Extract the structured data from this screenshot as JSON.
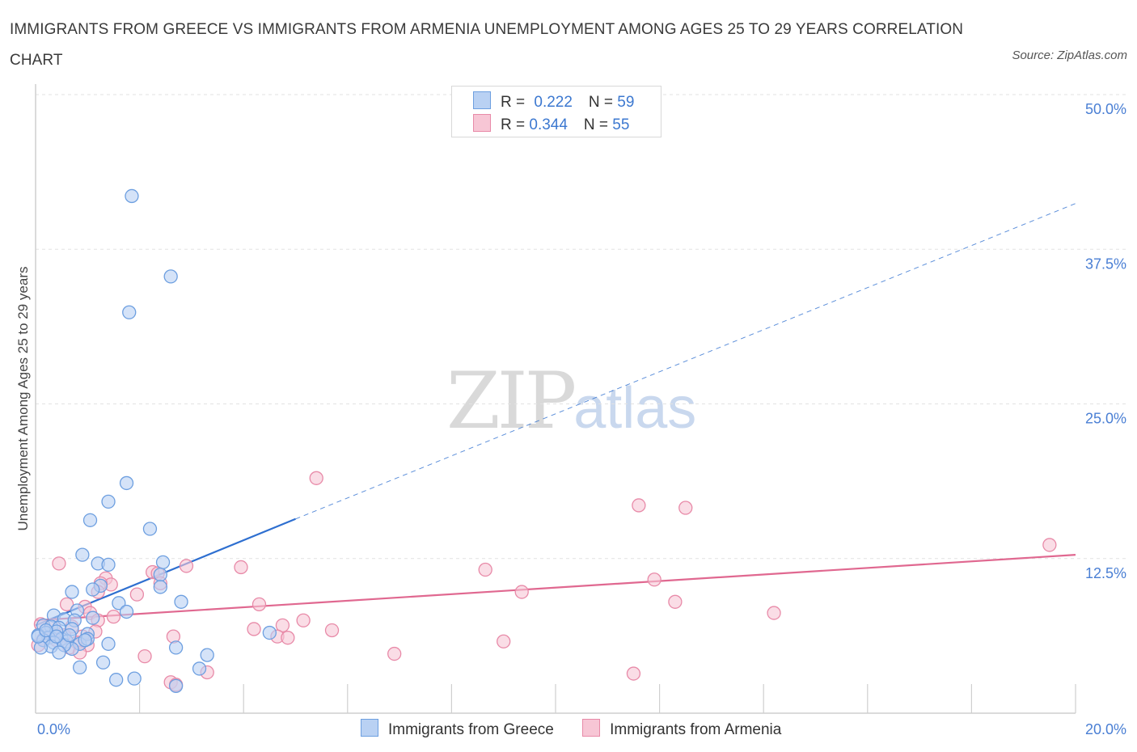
{
  "header": {
    "title": "IMMIGRANTS FROM GREECE VS IMMIGRANTS FROM ARMENIA UNEMPLOYMENT AMONG AGES 25 TO 29 YEARS CORRELATION CHART",
    "source": "Source: ZipAtlas.com"
  },
  "watermark": {
    "zip": "ZIP",
    "atlas": "atlas"
  },
  "legend": {
    "greece": {
      "r_label": "R = ",
      "r_value": "0.222",
      "n_label": "N = ",
      "n_value": "59"
    },
    "armenia": {
      "r_label": "R = ",
      "r_value": "0.344",
      "n_label": "N = ",
      "n_value": "55"
    }
  },
  "colors": {
    "greece_fill": "#b9d1f3",
    "greece_stroke": "#6d9fe0",
    "greece_line": "#2e6fd0",
    "armenia_fill": "#f7c6d5",
    "armenia_stroke": "#e88aa8",
    "armenia_line": "#e06890",
    "grid": "#e2e2e2",
    "tick_text": "#4a7fd4"
  },
  "chart_data": {
    "type": "scatter",
    "title": "IMMIGRANTS FROM GREECE VS IMMIGRANTS FROM ARMENIA UNEMPLOYMENT AMONG AGES 25 TO 29 YEARS CORRELATION CHART",
    "xlabel": "",
    "ylabel": "Unemployment Among Ages 25 to 29 years",
    "xlim": [
      0,
      20
    ],
    "ylim": [
      0,
      50
    ],
    "x_tick_labels": [
      "0.0%",
      "20.0%"
    ],
    "y_ticks": [
      12.5,
      25.0,
      37.5,
      50.0
    ],
    "y_tick_labels": [
      "12.5%",
      "25.0%",
      "37.5%",
      "50.0%"
    ],
    "grid": true,
    "series": [
      {
        "name": "Immigrants from Greece",
        "r": 0.222,
        "n": 59,
        "trend": {
          "x0": 0,
          "y0": 7.1,
          "x1": 5.0,
          "y1": 15.7,
          "x_extend": 20.0,
          "y_extend": 41.2
        },
        "points": [
          [
            1.85,
            41.8
          ],
          [
            2.6,
            35.3
          ],
          [
            1.8,
            32.4
          ],
          [
            1.75,
            18.6
          ],
          [
            1.4,
            17.1
          ],
          [
            1.05,
            15.6
          ],
          [
            2.2,
            14.9
          ],
          [
            0.9,
            12.8
          ],
          [
            1.2,
            12.1
          ],
          [
            1.4,
            12.0
          ],
          [
            2.45,
            12.2
          ],
          [
            2.4,
            11.2
          ],
          [
            1.25,
            10.3
          ],
          [
            1.1,
            10.0
          ],
          [
            2.4,
            10.2
          ],
          [
            0.7,
            9.8
          ],
          [
            2.8,
            9.0
          ],
          [
            1.6,
            8.9
          ],
          [
            1.75,
            8.2
          ],
          [
            0.8,
            8.3
          ],
          [
            0.35,
            7.9
          ],
          [
            0.55,
            7.6
          ],
          [
            0.75,
            7.5
          ],
          [
            1.1,
            7.7
          ],
          [
            0.15,
            7.1
          ],
          [
            0.3,
            7.0
          ],
          [
            0.45,
            6.9
          ],
          [
            0.7,
            6.8
          ],
          [
            0.2,
            6.5
          ],
          [
            0.4,
            6.6
          ],
          [
            0.05,
            6.3
          ],
          [
            1.0,
            6.4
          ],
          [
            0.25,
            6.1
          ],
          [
            0.5,
            6.0
          ],
          [
            0.6,
            5.8
          ],
          [
            0.35,
            5.7
          ],
          [
            0.85,
            5.6
          ],
          [
            1.0,
            6.0
          ],
          [
            0.15,
            5.9
          ],
          [
            0.3,
            5.4
          ],
          [
            0.7,
            5.2
          ],
          [
            0.55,
            5.5
          ],
          [
            0.45,
            4.9
          ],
          [
            0.1,
            5.3
          ],
          [
            1.4,
            5.6
          ],
          [
            2.7,
            5.3
          ],
          [
            4.5,
            6.5
          ],
          [
            3.3,
            4.7
          ],
          [
            0.85,
            3.7
          ],
          [
            1.3,
            4.1
          ],
          [
            3.15,
            3.6
          ],
          [
            1.55,
            2.7
          ],
          [
            1.9,
            2.8
          ],
          [
            2.7,
            2.2
          ],
          [
            0.05,
            6.2
          ],
          [
            0.2,
            6.7
          ],
          [
            0.65,
            6.3
          ],
          [
            0.95,
            5.9
          ],
          [
            0.4,
            6.2
          ]
        ]
      },
      {
        "name": "Immigrants from Armenia",
        "r": 0.344,
        "n": 55,
        "trend": {
          "x0": 0,
          "y0": 7.5,
          "x1": 20.0,
          "y1": 12.8
        },
        "points": [
          [
            5.4,
            19.0
          ],
          [
            11.6,
            16.8
          ],
          [
            12.5,
            16.6
          ],
          [
            19.5,
            13.6
          ],
          [
            0.45,
            12.1
          ],
          [
            2.9,
            11.9
          ],
          [
            3.95,
            11.8
          ],
          [
            8.65,
            11.6
          ],
          [
            2.25,
            11.4
          ],
          [
            2.35,
            11.3
          ],
          [
            1.35,
            10.9
          ],
          [
            1.45,
            10.4
          ],
          [
            1.25,
            10.5
          ],
          [
            11.9,
            10.8
          ],
          [
            2.4,
            10.5
          ],
          [
            1.2,
            9.8
          ],
          [
            1.95,
            9.6
          ],
          [
            9.35,
            9.8
          ],
          [
            4.3,
            8.8
          ],
          [
            12.3,
            9.0
          ],
          [
            0.6,
            8.8
          ],
          [
            0.95,
            8.6
          ],
          [
            1.05,
            8.1
          ],
          [
            14.2,
            8.1
          ],
          [
            1.5,
            7.8
          ],
          [
            1.2,
            7.5
          ],
          [
            5.15,
            7.5
          ],
          [
            4.75,
            7.1
          ],
          [
            0.1,
            7.2
          ],
          [
            0.35,
            7.1
          ],
          [
            0.7,
            7.0
          ],
          [
            4.2,
            6.8
          ],
          [
            5.7,
            6.7
          ],
          [
            0.25,
            6.5
          ],
          [
            0.55,
            6.3
          ],
          [
            0.9,
            6.2
          ],
          [
            2.65,
            6.2
          ],
          [
            4.65,
            6.2
          ],
          [
            4.85,
            6.1
          ],
          [
            0.15,
            6.0
          ],
          [
            0.4,
            5.9
          ],
          [
            0.8,
            5.7
          ],
          [
            9.0,
            5.8
          ],
          [
            0.05,
            5.5
          ],
          [
            0.65,
            5.3
          ],
          [
            1.0,
            5.5
          ],
          [
            0.85,
            4.9
          ],
          [
            2.1,
            4.6
          ],
          [
            6.9,
            4.8
          ],
          [
            3.3,
            3.3
          ],
          [
            11.5,
            3.2
          ],
          [
            2.6,
            2.5
          ],
          [
            2.7,
            2.3
          ],
          [
            0.3,
            6.4
          ],
          [
            1.15,
            6.6
          ]
        ]
      }
    ]
  }
}
